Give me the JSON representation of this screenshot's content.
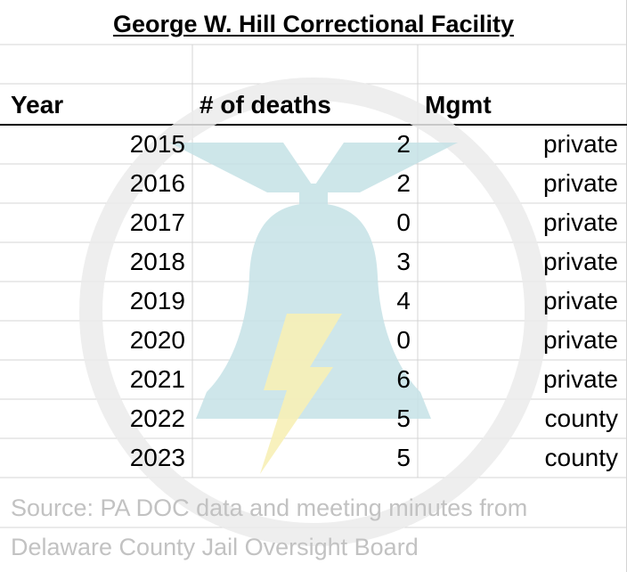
{
  "title": "George W. Hill Correctional Facility",
  "headers": {
    "year": "Year",
    "deaths": "# of deaths",
    "mgmt": "Mgmt"
  },
  "rows": [
    {
      "year": "2015",
      "deaths": "2",
      "mgmt": "private"
    },
    {
      "year": "2016",
      "deaths": "2",
      "mgmt": "private"
    },
    {
      "year": "2017",
      "deaths": "0",
      "mgmt": "private"
    },
    {
      "year": "2018",
      "deaths": "3",
      "mgmt": "private"
    },
    {
      "year": "2019",
      "deaths": "4",
      "mgmt": "private"
    },
    {
      "year": "2020",
      "deaths": "0",
      "mgmt": "private"
    },
    {
      "year": "2021",
      "deaths": "6",
      "mgmt": "private"
    },
    {
      "year": "2022",
      "deaths": "5",
      "mgmt": "county"
    },
    {
      "year": "2023",
      "deaths": "5",
      "mgmt": "county"
    }
  ],
  "source": {
    "line1": "Source: PA DOC data and meeting minutes from",
    "line2": "Delaware County Jail Oversight Board"
  },
  "colors": {
    "gridline": "#d4d4d4",
    "header_border": "#000000",
    "watermark_ring": "#ebebeb",
    "watermark_bell": "#c5e2e6",
    "watermark_bolt": "#f7efb6",
    "source_text": "#c2c2c2"
  },
  "icons": {
    "watermark": "liberty-bell-lightning-icon"
  }
}
